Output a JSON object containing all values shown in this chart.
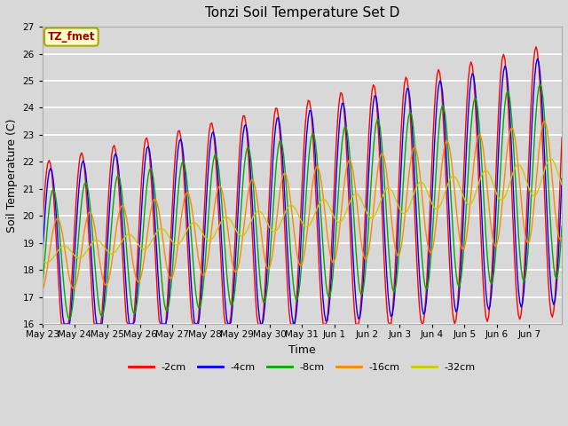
{
  "title": "Tonzi Soil Temperature Set D",
  "xlabel": "Time",
  "ylabel": "Soil Temperature (C)",
  "ylim": [
    16.0,
    27.0
  ],
  "yticks": [
    16.0,
    17.0,
    18.0,
    19.0,
    20.0,
    21.0,
    22.0,
    23.0,
    24.0,
    25.0,
    26.0,
    27.0
  ],
  "legend_label": "TZ_fmet",
  "legend_box_color": "#ffffcc",
  "legend_box_edge": "#aaa800",
  "legend_text_color": "#aa0000",
  "series_colors": [
    "#ff0000",
    "#0000ff",
    "#00aa00",
    "#ff8800",
    "#cccc00"
  ],
  "series_labels": [
    "-2cm",
    "-4cm",
    "-8cm",
    "-16cm",
    "-32cm"
  ],
  "background_color": "#d8d8d8",
  "plot_area_color": "#d8d8d8",
  "grid_color": "#ffffff",
  "tick_labels": [
    "May 23",
    "May 24",
    "May 25",
    "May 26",
    "May 27",
    "May 28",
    "May 29",
    "May 30",
    "May 31",
    "Jun 1",
    "Jun 2",
    "Jun 3",
    "Jun 4",
    "Jun 5",
    "Jun 6",
    "Jun 7"
  ]
}
